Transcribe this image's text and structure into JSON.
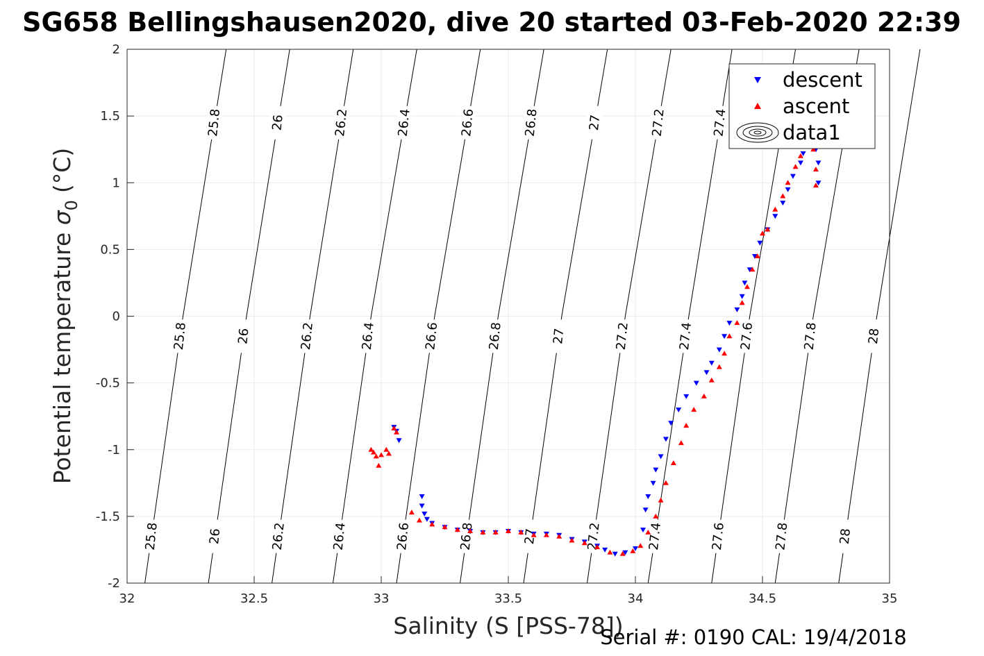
{
  "title": "SG658 Bellingshausen2020, dive 20 started 03-Feb-2020 22:39",
  "footer": "Serial #: 0190  CAL: 19/4/2018",
  "colors": {
    "descent": "#0000ff",
    "ascent": "#ff0000",
    "contour": "#000000",
    "grid": "#ebebeb"
  },
  "chart_data": {
    "type": "scatter",
    "xlabel": "Salinity (S [PSS-78])",
    "ylabel": "Potential temperature",
    "ylabel_symbol": "σ",
    "ylabel_sub": "0",
    "ylabel_unit": "(°C)",
    "xlim": [
      32,
      35
    ],
    "ylim": [
      -2,
      2
    ],
    "xticks": [
      "32",
      "32.5",
      "33",
      "33.5",
      "34",
      "34.5",
      "35"
    ],
    "yticks": [
      "-2",
      "-1.5",
      "-1",
      "-0.5",
      "0",
      "0.5",
      "1",
      "1.5",
      "2"
    ],
    "grid": true,
    "legend": {
      "placement": "top-right",
      "entries": [
        "descent",
        "ascent",
        "data1"
      ]
    },
    "contours": {
      "name": "data1",
      "levels": [
        "25.8",
        "26",
        "26.2",
        "26.4",
        "26.6",
        "26.8",
        "27",
        "27.2",
        "27.4",
        "27.6",
        "27.8",
        "28"
      ],
      "lines": [
        [
          [
            32.07,
            -2.0
          ],
          [
            32.22,
            0.0
          ],
          [
            32.39,
            2.0
          ]
        ],
        [
          [
            32.32,
            -2.0
          ],
          [
            32.47,
            0.0
          ],
          [
            32.64,
            2.0
          ]
        ],
        [
          [
            32.57,
            -2.0
          ],
          [
            32.72,
            0.0
          ],
          [
            32.89,
            2.0
          ]
        ],
        [
          [
            32.81,
            -2.0
          ],
          [
            32.96,
            0.0
          ],
          [
            33.14,
            2.0
          ]
        ],
        [
          [
            33.06,
            -2.0
          ],
          [
            33.21,
            0.0
          ],
          [
            33.39,
            2.0
          ]
        ],
        [
          [
            33.31,
            -2.0
          ],
          [
            33.46,
            0.0
          ],
          [
            33.64,
            2.0
          ]
        ],
        [
          [
            33.56,
            -2.0
          ],
          [
            33.71,
            0.0
          ],
          [
            33.89,
            2.0
          ]
        ],
        [
          [
            33.81,
            -2.0
          ],
          [
            33.96,
            0.0
          ],
          [
            34.14,
            2.0
          ]
        ],
        [
          [
            34.05,
            -2.0
          ],
          [
            34.21,
            0.0
          ],
          [
            34.38,
            2.0
          ]
        ],
        [
          [
            34.3,
            -2.0
          ],
          [
            34.45,
            0.0
          ],
          [
            34.63,
            2.0
          ]
        ],
        [
          [
            34.55,
            -2.0
          ],
          [
            34.7,
            0.0
          ],
          [
            34.88,
            2.0
          ]
        ],
        [
          [
            34.8,
            -2.0
          ],
          [
            34.95,
            0.0
          ],
          [
            35.12,
            2.0
          ]
        ]
      ],
      "label_rows": [
        1.45,
        -0.15,
        -1.65
      ]
    },
    "series": [
      {
        "name": "descent",
        "marker": "triangle-down",
        "points": [
          [
            33.05,
            -0.83
          ],
          [
            33.06,
            -0.86
          ],
          [
            33.07,
            -0.93
          ],
          [
            33.16,
            -1.35
          ],
          [
            33.16,
            -1.42
          ],
          [
            33.17,
            -1.48
          ],
          [
            33.18,
            -1.52
          ],
          [
            33.2,
            -1.55
          ],
          [
            33.25,
            -1.58
          ],
          [
            33.3,
            -1.6
          ],
          [
            33.35,
            -1.61
          ],
          [
            33.4,
            -1.62
          ],
          [
            33.45,
            -1.62
          ],
          [
            33.5,
            -1.61
          ],
          [
            33.55,
            -1.62
          ],
          [
            33.6,
            -1.63
          ],
          [
            33.65,
            -1.63
          ],
          [
            33.7,
            -1.64
          ],
          [
            33.75,
            -1.67
          ],
          [
            33.8,
            -1.69
          ],
          [
            33.85,
            -1.72
          ],
          [
            33.88,
            -1.75
          ],
          [
            33.92,
            -1.78
          ],
          [
            33.96,
            -1.77
          ],
          [
            34.0,
            -1.74
          ],
          [
            34.03,
            -1.6
          ],
          [
            34.04,
            -1.45
          ],
          [
            34.05,
            -1.35
          ],
          [
            34.07,
            -1.25
          ],
          [
            34.08,
            -1.15
          ],
          [
            34.1,
            -1.05
          ],
          [
            34.12,
            -0.92
          ],
          [
            34.14,
            -0.8
          ],
          [
            34.17,
            -0.7
          ],
          [
            34.2,
            -0.6
          ],
          [
            34.24,
            -0.5
          ],
          [
            34.28,
            -0.42
          ],
          [
            34.3,
            -0.35
          ],
          [
            34.33,
            -0.25
          ],
          [
            34.35,
            -0.15
          ],
          [
            34.37,
            -0.05
          ],
          [
            34.4,
            0.05
          ],
          [
            34.42,
            0.15
          ],
          [
            34.43,
            0.25
          ],
          [
            34.45,
            0.35
          ],
          [
            34.47,
            0.45
          ],
          [
            34.49,
            0.55
          ],
          [
            34.52,
            0.65
          ],
          [
            34.55,
            0.75
          ],
          [
            34.58,
            0.85
          ],
          [
            34.6,
            0.95
          ],
          [
            34.62,
            1.05
          ],
          [
            34.65,
            1.15
          ],
          [
            34.66,
            1.22
          ],
          [
            34.7,
            1.3
          ],
          [
            34.71,
            1.25
          ],
          [
            34.72,
            1.15
          ],
          [
            34.72,
            1.0
          ]
        ]
      },
      {
        "name": "ascent",
        "marker": "triangle-up",
        "points": [
          [
            32.96,
            -1.0
          ],
          [
            32.97,
            -1.02
          ],
          [
            32.98,
            -1.05
          ],
          [
            32.99,
            -1.12
          ],
          [
            33.0,
            -1.04
          ],
          [
            33.02,
            -1.0
          ],
          [
            33.03,
            -1.03
          ],
          [
            33.05,
            -0.84
          ],
          [
            33.06,
            -0.87
          ],
          [
            33.12,
            -1.47
          ],
          [
            33.15,
            -1.53
          ],
          [
            33.2,
            -1.56
          ],
          [
            33.25,
            -1.58
          ],
          [
            33.3,
            -1.6
          ],
          [
            33.35,
            -1.61
          ],
          [
            33.4,
            -1.62
          ],
          [
            33.45,
            -1.62
          ],
          [
            33.5,
            -1.61
          ],
          [
            33.55,
            -1.62
          ],
          [
            33.6,
            -1.64
          ],
          [
            33.65,
            -1.64
          ],
          [
            33.7,
            -1.65
          ],
          [
            33.75,
            -1.68
          ],
          [
            33.8,
            -1.7
          ],
          [
            33.85,
            -1.73
          ],
          [
            33.9,
            -1.77
          ],
          [
            33.95,
            -1.78
          ],
          [
            33.99,
            -1.76
          ],
          [
            34.02,
            -1.72
          ],
          [
            34.05,
            -1.62
          ],
          [
            34.08,
            -1.5
          ],
          [
            34.1,
            -1.38
          ],
          [
            34.12,
            -1.25
          ],
          [
            34.15,
            -1.1
          ],
          [
            34.18,
            -0.95
          ],
          [
            34.2,
            -0.82
          ],
          [
            34.23,
            -0.7
          ],
          [
            34.27,
            -0.6
          ],
          [
            34.3,
            -0.48
          ],
          [
            34.33,
            -0.38
          ],
          [
            34.35,
            -0.28
          ],
          [
            34.37,
            -0.15
          ],
          [
            34.4,
            -0.05
          ],
          [
            34.42,
            0.1
          ],
          [
            34.44,
            0.22
          ],
          [
            34.46,
            0.35
          ],
          [
            34.48,
            0.45
          ],
          [
            34.5,
            0.62
          ],
          [
            34.52,
            0.65
          ],
          [
            34.55,
            0.8
          ],
          [
            34.58,
            0.9
          ],
          [
            34.6,
            1.0
          ],
          [
            34.63,
            1.12
          ],
          [
            34.65,
            1.2
          ],
          [
            34.7,
            1.25
          ],
          [
            34.71,
            1.1
          ],
          [
            34.71,
            0.98
          ]
        ]
      }
    ]
  }
}
